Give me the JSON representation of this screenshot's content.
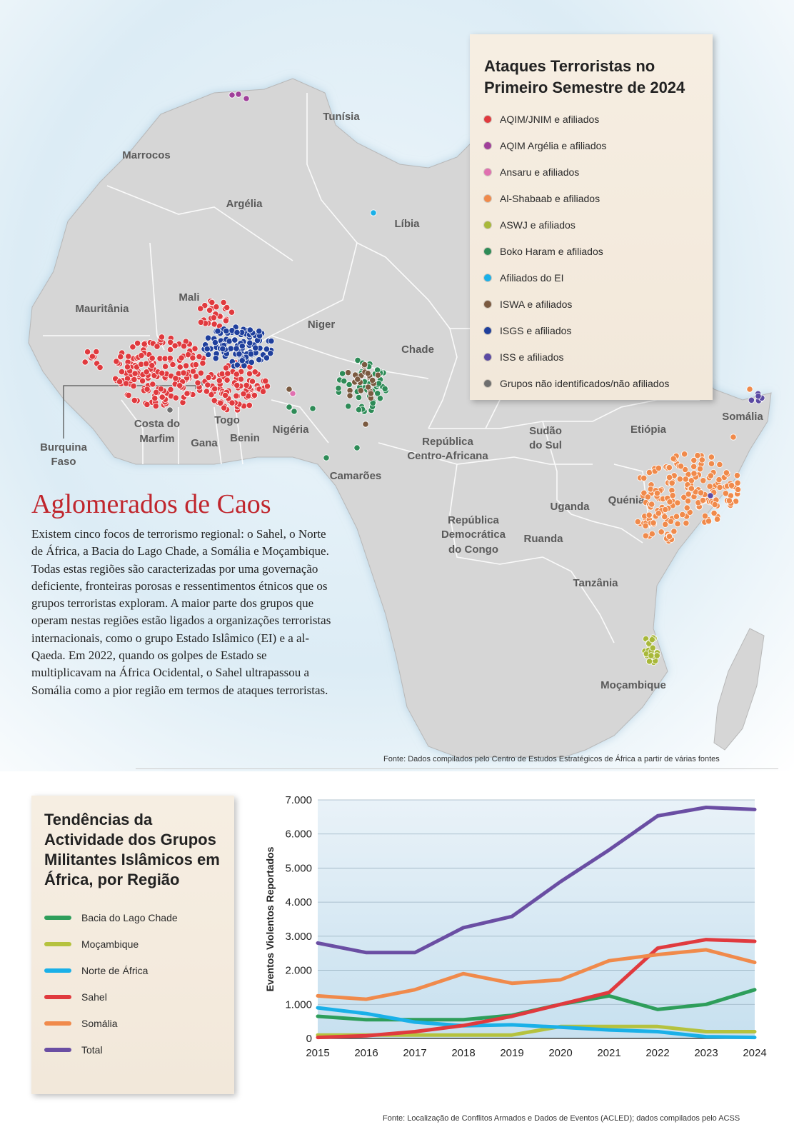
{
  "map": {
    "countries": [
      "Tunísia",
      "Marrocos",
      "Argélia",
      "Líbia",
      "Mauritânia",
      "Mali",
      "Niger",
      "Chade",
      "Burquina Faso",
      "Costa do Marfim",
      "Gana",
      "Togo",
      "Benin",
      "Nigéria",
      "Camarões",
      "República Centro-Africana",
      "Sudão do Sul",
      "Etiópia",
      "Somália",
      "Quénia",
      "Uganda",
      "Ruanda",
      "República Democrática do Congo",
      "Tanzânia",
      "Moçambique"
    ],
    "source": "Fonte: Dados compilados pelo Centro de Estudos Estratégicos de África a partir de várias fontes"
  },
  "legend": {
    "title_line1": "Ataques Terroristas no",
    "title_line2": "Primeiro Semestre de 2024",
    "items": [
      {
        "label": "AQIM/JNIM e afiliados",
        "color": "#e03a3e"
      },
      {
        "label": "AQIM Argélia e afiliados",
        "color": "#a0409a"
      },
      {
        "label": "Ansaru e afiliados",
        "color": "#e070b0"
      },
      {
        "label": "Al-Shabaab e afiliados",
        "color": "#f08a4b"
      },
      {
        "label": "ASWJ e afiliados",
        "color": "#a8b83a"
      },
      {
        "label": "Boko Haram e afiliados",
        "color": "#2e8b57"
      },
      {
        "label": "Afiliados do EI",
        "color": "#1ab0e8"
      },
      {
        "label": "ISWA e afiliados",
        "color": "#7a5a40"
      },
      {
        "label": "ISGS e afiliados",
        "color": "#1f3f9c"
      },
      {
        "label": "ISS e afiliados",
        "color": "#5b4aa3"
      },
      {
        "label": "Grupos não identificados/não afiliados",
        "color": "#6e6e6e"
      }
    ]
  },
  "article": {
    "title": "Aglomerados de Caos",
    "body": "Existem cinco focos de terrorismo regional: o Sahel, o Norte de África, a Bacia do Lago Chade, a Somália e Moçambique. Todas estas regiões são caracterizadas por uma governação deficiente, fronteiras porosas e ressentimentos étnicos que os grupos terroristas exploram. A maior parte dos grupos que operam nestas regiões estão ligados a organizações terroristas internacionais, como o grupo Estado Islâmico (EI) e a al-Qaeda. Em 2022, quando os golpes de Estado se multiplicavam na África Ocidental, o Sahel ultrapassou a Somália como a pior região em termos de ataques terroristas."
  },
  "trends": {
    "title": "Tendências da Actividade dos Grupos Militantes Islâmicos em África, por Região",
    "source": "Fonte: Localização de Conflitos Armados e Dados de Eventos (ACLED); dados compilados pelo ACSS"
  },
  "chart_data": {
    "type": "line",
    "x": [
      "2015",
      "2016",
      "2017",
      "2018",
      "2019",
      "2020",
      "2021",
      "2022",
      "2023",
      "2024"
    ],
    "ylabel": "Eventos Violentos Reportados",
    "ylim": [
      0,
      7000
    ],
    "yticks": [
      "0",
      "1.000",
      "2.000",
      "3.000",
      "4.000",
      "5.000",
      "6.000",
      "7.000"
    ],
    "grid": true,
    "series": [
      {
        "name": "Bacia do Lago Chade",
        "color": "#2e9e5b",
        "values": [
          650,
          550,
          550,
          550,
          680,
          1000,
          1250,
          850,
          1000,
          1430
        ]
      },
      {
        "name": "Moçambique",
        "color": "#b5c23e",
        "values": [
          100,
          100,
          100,
          100,
          100,
          350,
          350,
          350,
          200,
          200
        ]
      },
      {
        "name": "Norte de África",
        "color": "#1ab0e8",
        "values": [
          900,
          730,
          480,
          370,
          400,
          330,
          250,
          200,
          50,
          30
        ]
      },
      {
        "name": "Sahel",
        "color": "#e03a3e",
        "values": [
          30,
          80,
          200,
          380,
          650,
          1000,
          1350,
          2650,
          2900,
          2850
        ]
      },
      {
        "name": "Somália",
        "color": "#f08a4b",
        "values": [
          1250,
          1150,
          1430,
          1900,
          1620,
          1720,
          2280,
          2460,
          2600,
          2230
        ]
      },
      {
        "name": "Total",
        "color": "#6a4ea3",
        "values": [
          2800,
          2520,
          2520,
          3250,
          3580,
          4600,
          5530,
          6530,
          6780,
          6720
        ]
      }
    ]
  }
}
